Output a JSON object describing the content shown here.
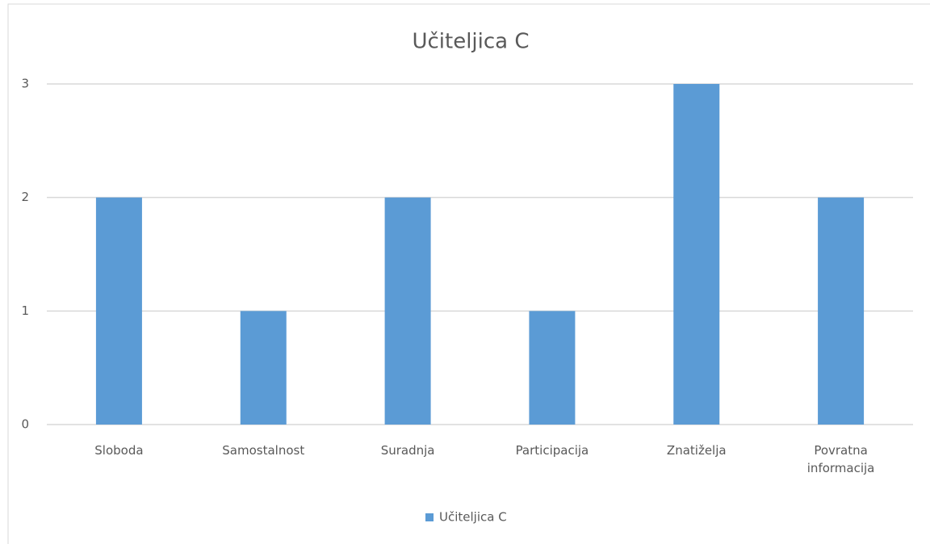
{
  "chart_data": {
    "type": "bar",
    "title": "Učiteljica C",
    "categories": [
      "Sloboda",
      "Samostalnost",
      "Suradnja",
      "Participacija",
      "Znatiželja",
      "Povratna informacija"
    ],
    "series": [
      {
        "name": "Učiteljica C",
        "color": "#5b9bd5",
        "values": [
          2,
          1,
          2,
          1,
          3,
          2
        ]
      }
    ],
    "ylim": [
      0,
      3
    ],
    "yticks": [
      0,
      1,
      2,
      3
    ],
    "grid": true,
    "legend": "bottom"
  }
}
